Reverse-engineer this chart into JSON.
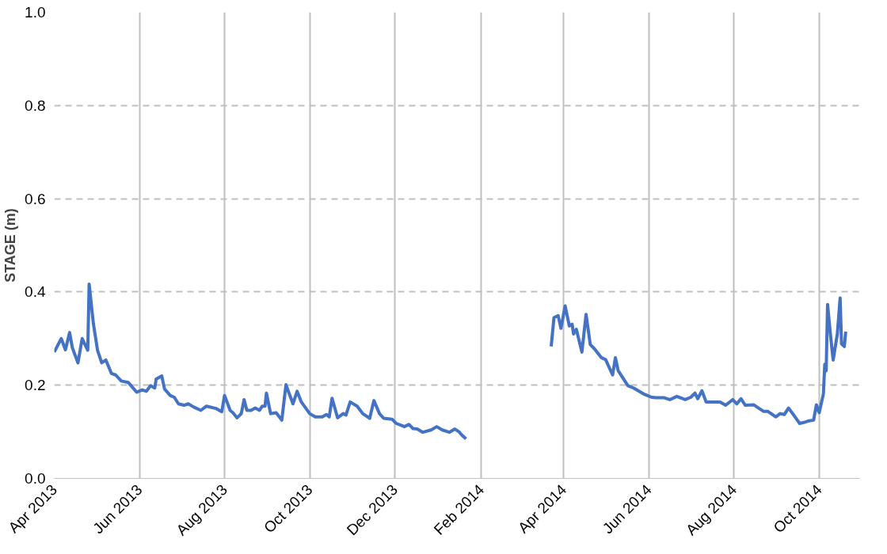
{
  "chart_data": {
    "type": "line",
    "ylabel": "STAGE (m)",
    "x": [
      "2013-04-01",
      "2013-04-06",
      "2013-04-09",
      "2013-04-12",
      "2013-04-14",
      "2013-04-18",
      "2013-04-21",
      "2013-04-25",
      "2013-04-26",
      "2013-04-29",
      "2013-05-02",
      "2013-05-05",
      "2013-05-08",
      "2013-05-12",
      "2013-05-15",
      "2013-05-19",
      "2013-05-24",
      "2013-05-30",
      "2013-06-03",
      "2013-06-06",
      "2013-06-09",
      "2013-06-12",
      "2013-06-13",
      "2013-06-17",
      "2013-06-19",
      "2013-06-23",
      "2013-06-26",
      "2013-06-29",
      "2013-07-03",
      "2013-07-06",
      "2013-07-10",
      "2013-07-15",
      "2013-07-19",
      "2013-07-26",
      "2013-07-30",
      "2013-08-01",
      "2013-08-05",
      "2013-08-07",
      "2013-08-10",
      "2013-08-13",
      "2013-08-15",
      "2013-08-17",
      "2013-08-20",
      "2013-08-23",
      "2013-08-26",
      "2013-08-28",
      "2013-08-30",
      "2013-08-31",
      "2013-09-03",
      "2013-09-07",
      "2013-09-11",
      "2013-09-14",
      "2013-09-19",
      "2013-09-22",
      "2013-09-25",
      "2013-10-01",
      "2013-10-05",
      "2013-10-10",
      "2013-10-13",
      "2013-10-15",
      "2013-10-17",
      "2013-10-21",
      "2013-10-25",
      "2013-10-27",
      "2013-10-30",
      "2013-11-04",
      "2013-11-08",
      "2013-11-13",
      "2013-11-16",
      "2013-11-20",
      "2013-11-23",
      "2013-11-29",
      "2013-12-02",
      "2013-12-08",
      "2013-12-11",
      "2013-12-14",
      "2013-12-17",
      "2013-12-21",
      "2013-12-27",
      "2013-12-31",
      "2014-01-04",
      "2014-01-09",
      "2014-01-13",
      "2014-01-16",
      "2014-01-18",
      "2014-01-21",
      "2014-02-20",
      "2014-03-23",
      "2014-03-25",
      "2014-03-28",
      "2014-03-30",
      "2014-04-02",
      "2014-04-05",
      "2014-04-07",
      "2014-04-08",
      "2014-04-10",
      "2014-04-14",
      "2014-04-17",
      "2014-04-20",
      "2014-04-23",
      "2014-04-28",
      "2014-05-01",
      "2014-05-06",
      "2014-05-08",
      "2014-05-10",
      "2014-05-17",
      "2014-05-21",
      "2014-05-29",
      "2014-06-03",
      "2014-06-06",
      "2014-06-12",
      "2014-06-16",
      "2014-06-21",
      "2014-06-27",
      "2014-07-01",
      "2014-07-04",
      "2014-07-06",
      "2014-07-09",
      "2014-07-12",
      "2014-07-18",
      "2014-07-22",
      "2014-07-26",
      "2014-07-31",
      "2014-08-03",
      "2014-08-06",
      "2014-08-09",
      "2014-08-15",
      "2014-08-22",
      "2014-08-25",
      "2014-08-31",
      "2014-09-03",
      "2014-09-06",
      "2014-09-09",
      "2014-09-12",
      "2014-09-17",
      "2014-09-20",
      "2014-09-23",
      "2014-09-27",
      "2014-09-29",
      "2014-10-01",
      "2014-10-04",
      "2014-10-05",
      "2014-10-06",
      "2014-10-07",
      "2014-10-09",
      "2014-10-11",
      "2014-10-14",
      "2014-10-16",
      "2014-10-17",
      "2014-10-19",
      "2014-10-20"
    ],
    "series": [
      {
        "color": "#4472c4",
        "values": [
          0.271,
          0.3,
          0.276,
          0.313,
          0.28,
          0.248,
          0.3,
          0.275,
          0.417,
          0.333,
          0.275,
          0.248,
          0.254,
          0.225,
          0.222,
          0.209,
          0.206,
          0.185,
          0.19,
          0.187,
          0.199,
          0.194,
          0.213,
          0.22,
          0.192,
          0.178,
          0.174,
          0.16,
          0.157,
          0.16,
          0.153,
          0.146,
          0.155,
          0.15,
          0.143,
          0.178,
          0.146,
          0.141,
          0.13,
          0.139,
          0.169,
          0.146,
          0.146,
          0.151,
          0.146,
          0.155,
          0.155,
          0.183,
          0.139,
          0.141,
          0.125,
          0.201,
          0.16,
          0.187,
          0.164,
          0.139,
          0.132,
          0.132,
          0.137,
          0.132,
          0.172,
          0.13,
          0.139,
          0.136,
          0.164,
          0.155,
          0.139,
          0.129,
          0.167,
          0.139,
          0.129,
          0.127,
          0.118,
          0.111,
          0.116,
          0.107,
          0.106,
          0.099,
          0.104,
          0.111,
          0.104,
          0.099,
          0.106,
          0.1,
          0.093,
          0.085,
          null,
          0.283,
          0.345,
          0.349,
          0.322,
          0.37,
          0.327,
          0.331,
          0.31,
          0.32,
          0.271,
          0.352,
          0.287,
          0.278,
          0.259,
          0.255,
          0.222,
          0.259,
          0.231,
          0.199,
          0.194,
          0.18,
          0.174,
          0.173,
          0.173,
          0.169,
          0.176,
          0.169,
          0.174,
          0.183,
          0.171,
          0.188,
          0.164,
          0.164,
          0.164,
          0.157,
          0.169,
          0.16,
          0.171,
          0.157,
          0.158,
          0.144,
          0.144,
          0.132,
          0.139,
          0.137,
          0.151,
          0.139,
          0.118,
          0.12,
          0.123,
          0.125,
          0.158,
          0.141,
          0.181,
          0.245,
          0.231,
          0.373,
          0.31,
          0.254,
          0.31,
          0.387,
          0.289,
          0.283,
          0.315
        ]
      }
    ],
    "xlim": [
      "2013-04-01",
      "2014-10-30"
    ],
    "xticks": [
      {
        "value": "2013-04-01",
        "label": "Apr 2013"
      },
      {
        "value": "2013-06-01",
        "label": "Jun 2013"
      },
      {
        "value": "2013-08-01",
        "label": "Aug 2013"
      },
      {
        "value": "2013-10-01",
        "label": "Oct 2013"
      },
      {
        "value": "2013-12-01",
        "label": "Dec 2013"
      },
      {
        "value": "2014-02-01",
        "label": "Feb 2014"
      },
      {
        "value": "2014-04-01",
        "label": "Apr 2014"
      },
      {
        "value": "2014-06-01",
        "label": "Jun 2014"
      },
      {
        "value": "2014-08-01",
        "label": "Aug 2014"
      },
      {
        "value": "2014-10-01",
        "label": "Oct 2014"
      }
    ],
    "ylim": [
      0,
      1
    ],
    "yticks": [
      {
        "value": 0,
        "label": "0.0"
      },
      {
        "value": 0.2,
        "label": "0.2"
      },
      {
        "value": 0.4,
        "label": "0.4"
      },
      {
        "value": 0.6,
        "label": "0.6"
      },
      {
        "value": 0.8,
        "label": "0.8"
      },
      {
        "value": 1,
        "label": "1.0"
      }
    ],
    "grid": true,
    "marker": "none",
    "line_style": "solid"
  }
}
